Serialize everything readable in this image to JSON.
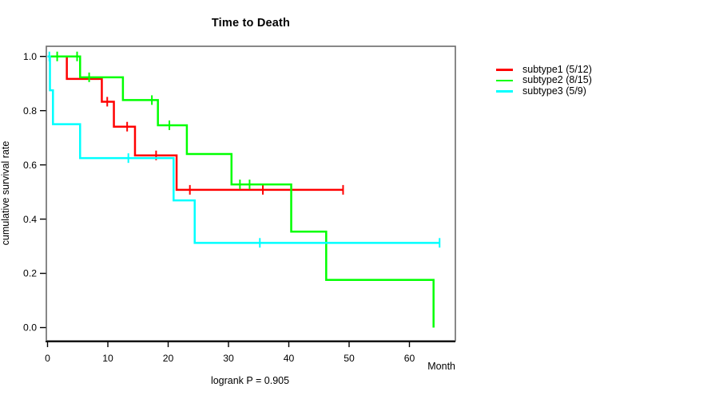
{
  "chart_data": {
    "type": "line",
    "subtype": "kaplan-meier-step",
    "title": "Time to Death",
    "xlabel": "Month",
    "ylabel": "cumulative survival rate",
    "footnote": "logrank P = 0.905",
    "x_ticks": [
      0,
      10,
      20,
      30,
      40,
      50,
      60
    ],
    "y_ticks": [
      0.0,
      0.2,
      0.4,
      0.6,
      0.8,
      1.0
    ],
    "xlim": [
      0,
      68
    ],
    "ylim": [
      0,
      1.04
    ],
    "grid": false,
    "legend_position": "right-of-plot",
    "series": [
      {
        "name": "subtype1",
        "label": "subtype1 (5/12)",
        "color": "#ff0000",
        "steps": [
          [
            0,
            1.0
          ],
          [
            3.2,
            0.917
          ],
          [
            9.0,
            0.833
          ],
          [
            11.0,
            0.741
          ],
          [
            14.5,
            0.635
          ],
          [
            21.4,
            0.508
          ]
        ],
        "end_month": 49.0,
        "censors": [
          [
            9.9,
            0.833
          ],
          [
            13.2,
            0.741
          ],
          [
            18.0,
            0.635
          ],
          [
            23.6,
            0.508
          ],
          [
            35.7,
            0.508
          ],
          [
            49.0,
            0.508
          ]
        ]
      },
      {
        "name": "subtype2",
        "label": "subtype2 (8/15)",
        "color": "#00ff00",
        "steps": [
          [
            0,
            1.0
          ],
          [
            5.4,
            0.923
          ],
          [
            12.5,
            0.839
          ],
          [
            18.3,
            0.746
          ],
          [
            23.1,
            0.64
          ],
          [
            30.5,
            0.528
          ],
          [
            40.4,
            0.354
          ],
          [
            46.2,
            0.176
          ],
          [
            64.0,
            0.0
          ]
        ],
        "end_month": 64.0,
        "censors": [
          [
            1.6,
            1.0
          ],
          [
            4.9,
            1.0
          ],
          [
            6.9,
            0.923
          ],
          [
            17.3,
            0.839
          ],
          [
            20.2,
            0.746
          ],
          [
            31.9,
            0.528
          ],
          [
            33.5,
            0.528
          ]
        ]
      },
      {
        "name": "subtype3",
        "label": "subtype3 (5/9)",
        "color": "#00ffff",
        "steps": [
          [
            0,
            1.0
          ],
          [
            0.4,
            0.875
          ],
          [
            0.9,
            0.75
          ],
          [
            5.4,
            0.625
          ],
          [
            20.9,
            0.469
          ],
          [
            24.4,
            0.3125
          ]
        ],
        "end_month": 65.0,
        "censors": [
          [
            0.3,
            1.0
          ],
          [
            13.4,
            0.625
          ],
          [
            35.2,
            0.3125
          ],
          [
            65.0,
            0.3125
          ]
        ]
      }
    ]
  }
}
